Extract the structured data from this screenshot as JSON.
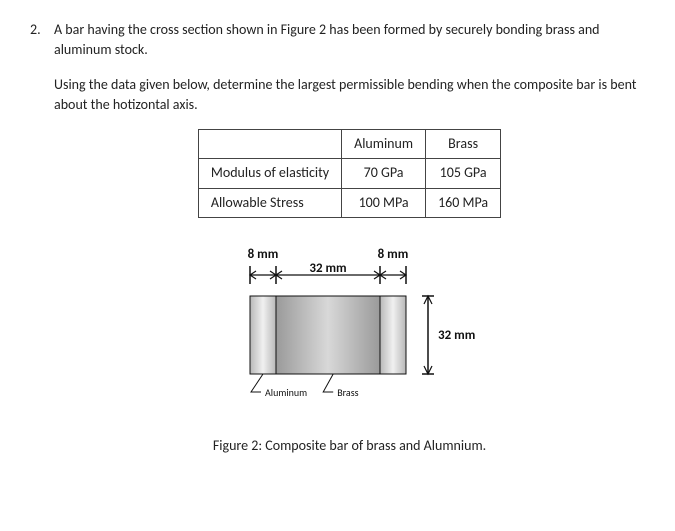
{
  "question": {
    "number": "2.",
    "para1": "A bar having the cross section shown in Figure 2 has been formed by securely bonding brass and aluminum stock.",
    "para2": "Using the data given below, determine the largest permissible bending when the composite bar is bent about the hotizontal axis."
  },
  "table": {
    "col1": "Aluminum",
    "col2": "Brass",
    "rows": [
      {
        "label": "Modulus of elasticity",
        "c1": "70 GPa",
        "c2": "105 GPa"
      },
      {
        "label": "Allowable Stress",
        "c1": "100 MPa",
        "c2": "160 MPa"
      }
    ]
  },
  "figure": {
    "dim_left": "8 mm",
    "dim_mid": "32 mm",
    "dim_right": "8 mm",
    "dim_height": "32 mm",
    "label_left": "Aluminum",
    "label_right": "Brass",
    "caption": "Figure 2: Composite bar of brass and Alumnium.",
    "colors": {
      "aluminum_light": "#f0f0f0",
      "aluminum_dark": "#b8b8b8",
      "brass_light": "#d8d8d8",
      "brass_dark": "#9a9a9a",
      "stroke": "#111"
    },
    "geom": {
      "left_w": 26,
      "mid_w": 104,
      "rect_h": 78,
      "right_w": 26
    }
  }
}
